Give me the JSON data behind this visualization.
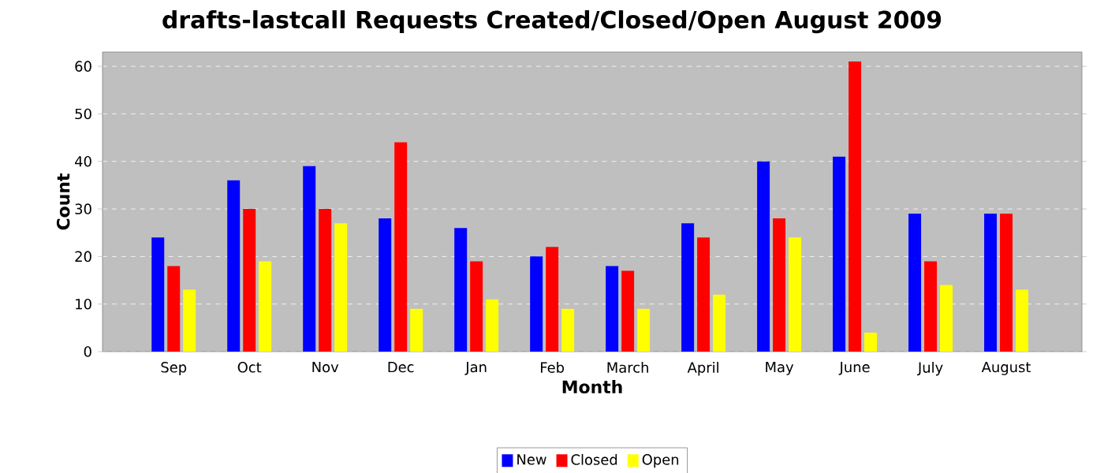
{
  "chart_data": {
    "type": "bar",
    "title": "drafts-lastcall Requests Created/Closed/Open August 2009",
    "xlabel": "Month",
    "ylabel": "Count",
    "categories": [
      "Sep",
      "Oct",
      "Nov",
      "Dec",
      "Jan",
      "Feb",
      "March",
      "April",
      "May",
      "June",
      "July",
      "August"
    ],
    "series": [
      {
        "name": "New",
        "color": "#0000ff",
        "values": [
          24,
          36,
          39,
          28,
          26,
          20,
          18,
          27,
          40,
          41,
          29,
          29
        ]
      },
      {
        "name": "Closed",
        "color": "#ff0000",
        "values": [
          18,
          30,
          30,
          44,
          19,
          22,
          17,
          24,
          28,
          61,
          19,
          29
        ]
      },
      {
        "name": "Open",
        "color": "#ffff00",
        "values": [
          13,
          19,
          27,
          9,
          11,
          9,
          9,
          12,
          24,
          4,
          14,
          13
        ]
      }
    ],
    "ylim": [
      0,
      63
    ],
    "yticks": [
      0,
      10,
      20,
      30,
      40,
      50,
      60
    ],
    "grid": "y",
    "legend": "bottom"
  }
}
